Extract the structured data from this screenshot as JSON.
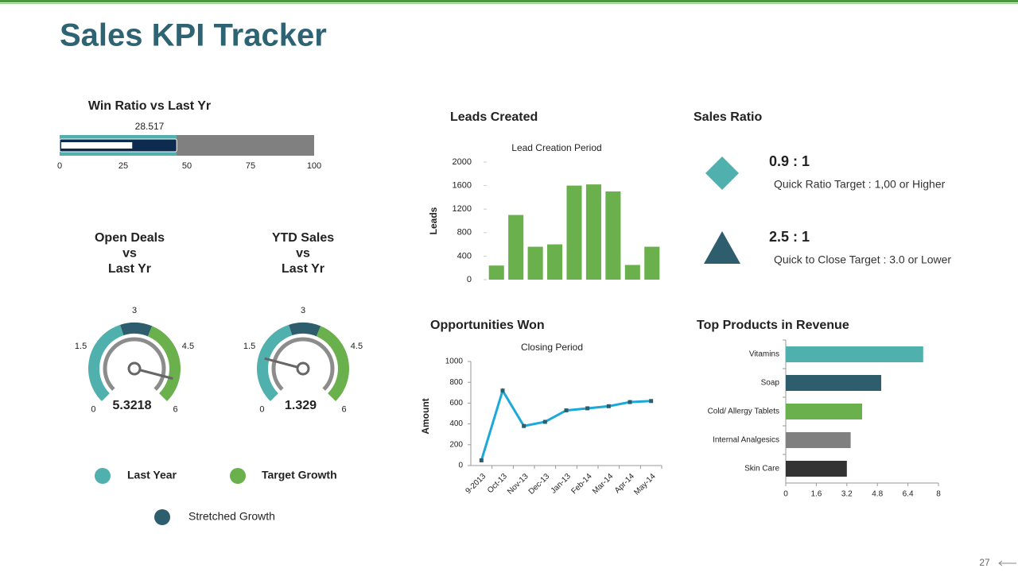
{
  "header": {
    "title": "Sales KPI Tracker"
  },
  "chart_data": [
    {
      "type": "bullet",
      "title": "Win Ratio vs Last Yr",
      "value": 28.517,
      "target": 46,
      "ranges": [
        46,
        100
      ],
      "range_colors": [
        "#4fb0ae",
        "#808080"
      ],
      "target_color": "#0d2b4f",
      "value_color": "#ffffff",
      "xlim": [
        0,
        100
      ],
      "xticks": [
        0,
        25,
        50,
        75,
        100
      ]
    },
    {
      "type": "gauge",
      "title": [
        "Open Deals",
        "vs",
        "Last Yr"
      ],
      "value": 5.3218,
      "bands": [
        [
          0,
          2.6
        ],
        [
          2.6,
          3.5
        ],
        [
          3.5,
          6
        ]
      ],
      "band_colors": [
        "#4fb0ae",
        "#2e5e6e",
        "#6ab04c"
      ],
      "xlim": [
        0,
        6
      ],
      "xticks": [
        0,
        1.5,
        3,
        4.5,
        6
      ]
    },
    {
      "type": "gauge",
      "title": [
        "YTD Sales",
        "vs",
        "Last Yr"
      ],
      "value": 1.329,
      "bands": [
        [
          0,
          2.6
        ],
        [
          2.6,
          3.5
        ],
        [
          3.5,
          6
        ]
      ],
      "band_colors": [
        "#4fb0ae",
        "#2e5e6e",
        "#6ab04c"
      ],
      "xlim": [
        0,
        6
      ],
      "xticks": [
        0,
        1.5,
        3,
        4.5,
        6
      ]
    },
    {
      "type": "bar",
      "title": "Leads Created",
      "subtitle": "Lead Creation Period",
      "ylabel": "Leads",
      "categories": [
        null,
        null,
        null,
        null,
        null,
        null,
        null,
        null,
        null
      ],
      "values": [
        240,
        1100,
        560,
        600,
        1600,
        1620,
        1500,
        250,
        560
      ],
      "color": "#6ab04c",
      "ylim": [
        0,
        2000
      ],
      "yticks": [
        0,
        400,
        800,
        1200,
        1600,
        2000
      ]
    },
    {
      "type": "line",
      "title": "Opportunities Won",
      "subtitle": "Closing Period",
      "ylabel": "Amount",
      "categories": [
        "9-2013",
        "Oct-13",
        "Nov-13",
        "Dec-13",
        "Jan-13",
        "Feb-14",
        "Mar-14",
        "Apr-14",
        "May-14"
      ],
      "values": [
        50,
        720,
        380,
        420,
        530,
        550,
        570,
        610,
        620
      ],
      "color": "#1ca9d9",
      "marker_color": "#2e5e6e",
      "ylim": [
        0,
        1000
      ],
      "yticks": [
        0,
        200,
        400,
        600,
        800,
        1000
      ]
    },
    {
      "type": "hbar",
      "title": "Top Products in Revenue",
      "categories": [
        "Vitamins",
        "Soap",
        "Cold/ Allergy Tablets",
        "Internal Analgesics",
        "Skin Care"
      ],
      "values": [
        7.2,
        5,
        4,
        3.4,
        3.2
      ],
      "colors": [
        "#4fb0ae",
        "#2e5e6e",
        "#6ab04c",
        "#808080",
        "#333333"
      ],
      "xlim": [
        0,
        8
      ],
      "xticks": [
        0,
        1.6,
        3.2,
        4.8,
        6.4,
        8
      ]
    }
  ],
  "legend": [
    {
      "name": "Last Year",
      "color": "#4fb0ae"
    },
    {
      "name": "Target Growth",
      "color": "#6ab04c"
    },
    {
      "name": "Stretched Growth",
      "color": "#2e5e6e"
    }
  ],
  "sales_ratio": {
    "title": "Sales Ratio",
    "items": [
      {
        "ratio": "0.9 : 1",
        "note": "Quick Ratio Target : 1,00 or Higher"
      },
      {
        "ratio": "2.5 : 1",
        "note": "Quick to Close Target : 3.0 or Lower"
      }
    ]
  },
  "page_number": "27"
}
